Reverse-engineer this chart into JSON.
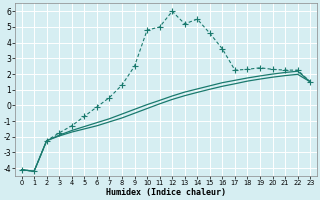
{
  "xlabel": "Humidex (Indice chaleur)",
  "bg_color": "#d6eef2",
  "grid_color": "#b8dde4",
  "line_color": "#1a7a6e",
  "xlim": [
    -0.5,
    23.5
  ],
  "ylim": [
    -4.5,
    6.5
  ],
  "xticks": [
    0,
    1,
    2,
    3,
    4,
    5,
    6,
    7,
    8,
    9,
    10,
    11,
    12,
    13,
    14,
    15,
    16,
    17,
    18,
    19,
    20,
    21,
    22,
    23
  ],
  "yticks": [
    -4,
    -3,
    -2,
    -1,
    0,
    1,
    2,
    3,
    4,
    5,
    6
  ],
  "s1_x": [
    0,
    1,
    2,
    3,
    4,
    5,
    6,
    7,
    8,
    9,
    10,
    11,
    12,
    13,
    14,
    15,
    16,
    17,
    18,
    19,
    20,
    21,
    22,
    23
  ],
  "s1_y": [
    -4.1,
    -4.2,
    -2.25,
    -1.75,
    -1.3,
    -0.7,
    -0.1,
    0.5,
    1.3,
    2.5,
    4.8,
    5.0,
    6.0,
    5.2,
    5.5,
    4.6,
    3.6,
    2.25,
    2.3,
    2.4,
    2.3,
    2.25,
    2.25,
    1.5
  ],
  "s2_x": [
    0,
    1,
    2,
    3,
    4,
    5,
    6,
    7,
    8,
    9,
    10,
    11,
    12,
    13,
    14,
    15,
    16,
    17,
    18,
    19,
    20,
    21,
    22,
    23
  ],
  "s2_y": [
    -4.1,
    -4.2,
    -2.25,
    -1.9,
    -1.6,
    -1.35,
    -1.1,
    -0.85,
    -0.55,
    -0.25,
    0.05,
    0.32,
    0.6,
    0.85,
    1.05,
    1.25,
    1.45,
    1.6,
    1.75,
    1.88,
    2.0,
    2.1,
    2.18,
    1.5
  ],
  "s3_x": [
    0,
    1,
    2,
    3,
    4,
    5,
    6,
    7,
    8,
    9,
    10,
    11,
    12,
    13,
    14,
    15,
    16,
    17,
    18,
    19,
    20,
    21,
    22,
    23
  ],
  "s3_y": [
    -4.1,
    -4.2,
    -2.25,
    -1.95,
    -1.7,
    -1.5,
    -1.3,
    -1.05,
    -0.8,
    -0.5,
    -0.2,
    0.1,
    0.38,
    0.62,
    0.83,
    1.03,
    1.22,
    1.38,
    1.55,
    1.68,
    1.8,
    1.9,
    1.98,
    1.5
  ]
}
